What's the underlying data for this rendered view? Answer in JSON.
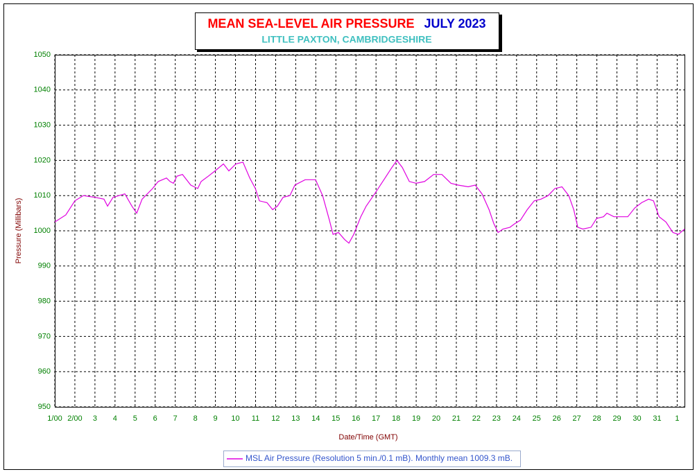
{
  "chart_data": {
    "type": "line",
    "title": "MEAN SEA-LEVEL AIR PRESSURE",
    "title_period": "JULY 2023",
    "subtitle": "LITTLE PAXTON, CAMBRIDGESHIRE",
    "xlabel": "Date/Time (GMT)",
    "ylabel": "Pressure (Millibars)",
    "x": [
      0,
      0.55,
      1.0,
      1.42,
      2.0,
      2.45,
      2.63,
      2.9,
      3.49,
      3.84,
      4.08,
      4.35,
      4.87,
      5.15,
      5.56,
      5.74,
      5.91,
      6.08,
      6.36,
      6.77,
      7.12,
      7.29,
      7.64,
      7.98,
      8.4,
      8.67,
      9.02,
      9.37,
      9.71,
      9.99,
      10.19,
      10.57,
      10.85,
      11.09,
      11.37,
      11.71,
      11.96,
      12.47,
      12.99,
      13.34,
      13.68,
      13.86,
      14.13,
      14.44,
      14.65,
      14.89,
      15.24,
      15.51,
      15.93,
      16.45,
      16.79,
      17.04,
      17.31,
      17.66,
      18.0,
      18.42,
      18.87,
      19.28,
      19.73,
      20.08,
      20.59,
      20.94,
      21.28,
      21.63,
      21.87,
      22.08,
      22.32,
      22.67,
      22.91,
      23.19,
      23.53,
      23.88,
      24.22,
      24.57,
      24.91,
      25.26,
      25.6,
      25.85,
      26.05,
      26.3,
      26.71,
      26.99,
      27.33,
      27.5,
      27.85,
      28.2,
      28.54,
      28.89,
      29.23,
      29.58,
      29.82,
      30.1,
      30.44,
      30.79,
      31.06,
      31.37
    ],
    "series": [
      {
        "name": "MSL Air Pressure (Resolution 5 min./0.1 mB). Monthly mean 1009.3 mB.",
        "color": "#e000e0",
        "values": [
          1002.5,
          1004.5,
          1008.5,
          1010,
          1009.5,
          1009,
          1007,
          1009.5,
          1010.5,
          1007,
          1005,
          1009,
          1012,
          1014,
          1015,
          1014,
          1013.5,
          1015.5,
          1016,
          1013,
          1012,
          1014,
          1015.5,
          1017,
          1019,
          1017,
          1019,
          1019.5,
          1015,
          1012,
          1008.5,
          1008,
          1006,
          1007,
          1009.5,
          1010,
          1013,
          1014.5,
          1014.5,
          1010,
          1003,
          999,
          999.5,
          997.5,
          996.5,
          999,
          1004,
          1007,
          1010.5,
          1015,
          1018,
          1020,
          1018,
          1014,
          1013.5,
          1014,
          1016,
          1016,
          1013.5,
          1013,
          1012.5,
          1013,
          1010.5,
          1006,
          1002,
          999.5,
          1000.5,
          1001,
          1002,
          1003,
          1006,
          1008.5,
          1009,
          1010,
          1012,
          1012.5,
          1010,
          1006,
          1001,
          1000.5,
          1001,
          1003.5,
          1004,
          1005,
          1004,
          1004,
          1004,
          1006.5,
          1008,
          1009,
          1008.5,
          1004,
          1002.5,
          999.5,
          999,
          1000.5
        ]
      }
    ],
    "xlim": [
      0,
      31.4
    ],
    "xticks": [
      {
        "value": 0,
        "label": "1/00"
      },
      {
        "value": 1,
        "label": "2/00"
      },
      {
        "value": 2,
        "label": "3"
      },
      {
        "value": 3,
        "label": "4"
      },
      {
        "value": 4,
        "label": "5"
      },
      {
        "value": 5,
        "label": "6"
      },
      {
        "value": 6,
        "label": "7"
      },
      {
        "value": 7,
        "label": "8"
      },
      {
        "value": 8,
        "label": "9"
      },
      {
        "value": 9,
        "label": "10"
      },
      {
        "value": 10,
        "label": "11"
      },
      {
        "value": 11,
        "label": "12"
      },
      {
        "value": 12,
        "label": "13"
      },
      {
        "value": 13,
        "label": "14"
      },
      {
        "value": 14,
        "label": "15"
      },
      {
        "value": 15,
        "label": "16"
      },
      {
        "value": 16,
        "label": "17"
      },
      {
        "value": 17,
        "label": "18"
      },
      {
        "value": 18,
        "label": "19"
      },
      {
        "value": 19,
        "label": "20"
      },
      {
        "value": 20,
        "label": "21"
      },
      {
        "value": 21,
        "label": "22"
      },
      {
        "value": 22,
        "label": "23"
      },
      {
        "value": 23,
        "label": "24"
      },
      {
        "value": 24,
        "label": "25"
      },
      {
        "value": 25,
        "label": "26"
      },
      {
        "value": 26,
        "label": "27"
      },
      {
        "value": 27,
        "label": "28"
      },
      {
        "value": 28,
        "label": "29"
      },
      {
        "value": 29,
        "label": "30"
      },
      {
        "value": 30,
        "label": "31"
      },
      {
        "value": 31,
        "label": "1"
      }
    ],
    "ylim": [
      950,
      1050
    ],
    "yticks": [
      950,
      960,
      970,
      980,
      990,
      1000,
      1010,
      1020,
      1030,
      1040,
      1050
    ],
    "grid": true,
    "legend": "bottom"
  }
}
